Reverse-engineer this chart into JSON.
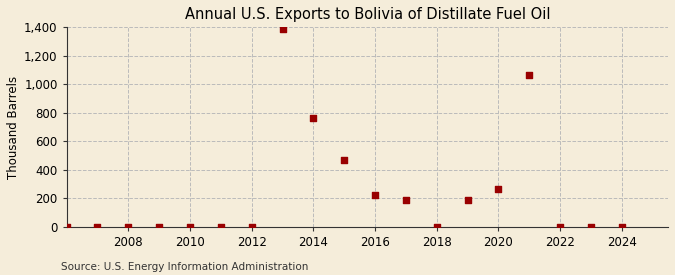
{
  "title": "Annual U.S. Exports to Bolivia of Distillate Fuel Oil",
  "ylabel": "Thousand Barrels",
  "source": "Source: U.S. Energy Information Administration",
  "years": [
    2006,
    2007,
    2008,
    2009,
    2010,
    2011,
    2012,
    2013,
    2014,
    2015,
    2016,
    2017,
    2018,
    2019,
    2020,
    2021,
    2022,
    2023,
    2024
  ],
  "values": [
    0,
    0,
    0,
    0,
    0,
    0,
    0,
    1390,
    760,
    470,
    220,
    190,
    0,
    185,
    265,
    1065,
    0,
    0,
    0
  ],
  "marker_color": "#990000",
  "background_color": "#f5edda",
  "plot_bg_color": "#f5edda",
  "grid_color": "#bbbbbb",
  "spine_color": "#333333",
  "xlim": [
    2006.0,
    2025.5
  ],
  "ylim": [
    0,
    1400
  ],
  "yticks": [
    0,
    200,
    400,
    600,
    800,
    1000,
    1200,
    1400
  ],
  "xticks": [
    2008,
    2010,
    2012,
    2014,
    2016,
    2018,
    2020,
    2022,
    2024
  ],
  "title_fontsize": 10.5,
  "axis_fontsize": 8.5,
  "ylabel_fontsize": 8.5,
  "source_fontsize": 7.5
}
